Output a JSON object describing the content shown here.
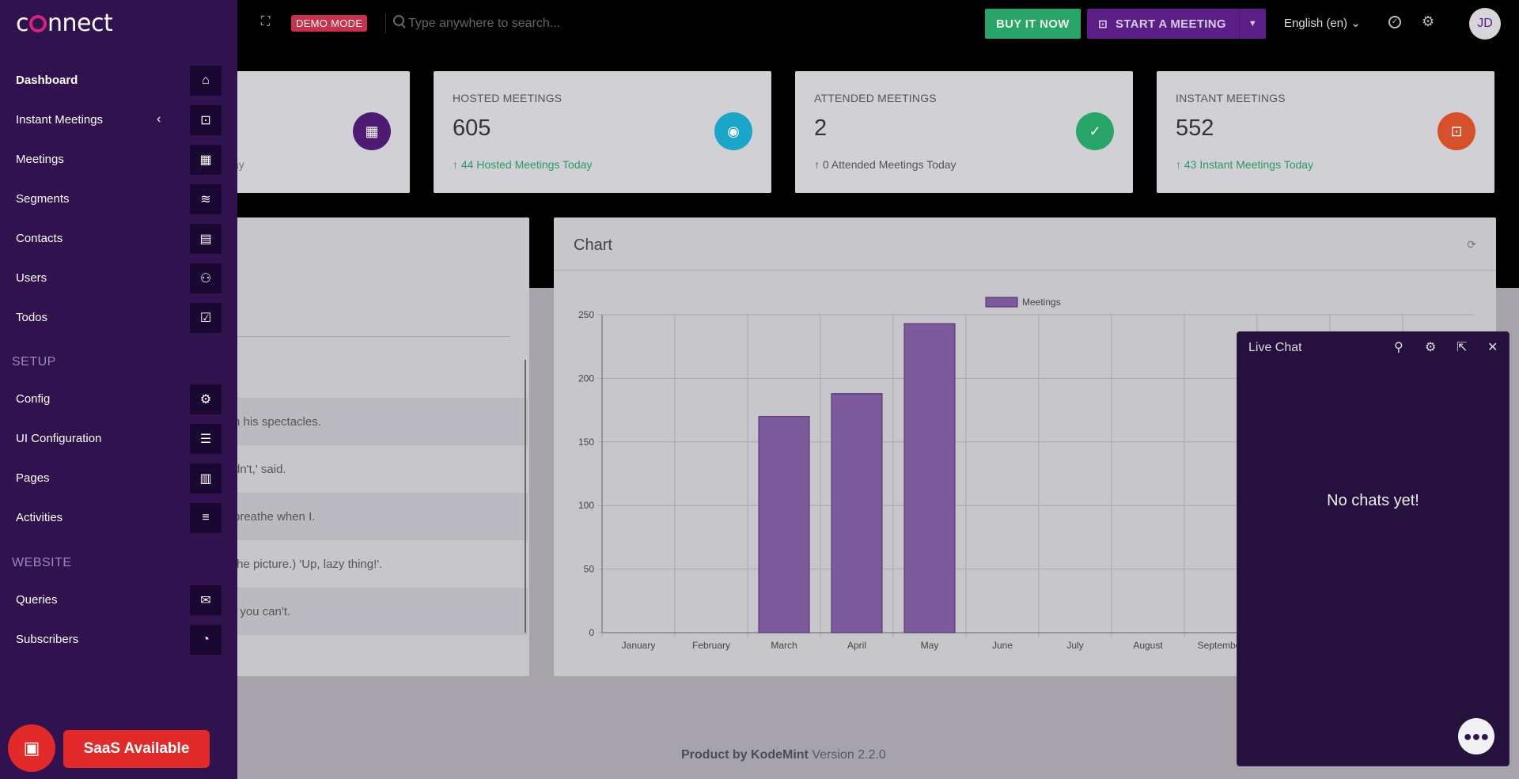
{
  "header": {
    "demo_badge": "DEMO MODE",
    "search_placeholder": "Type anywhere to search...",
    "buy_label": "BUY IT NOW",
    "start_label": "START A MEETING",
    "language": "English (en)",
    "avatar_initials": "JD"
  },
  "cards": [
    {
      "label": "",
      "number": "",
      "sub": "ay",
      "icon": "calendar-icon",
      "color": "#5b1e86"
    },
    {
      "label": "HOSTED MEETINGS",
      "number": "605",
      "sub": "44 Hosted Meetings Today",
      "icon": "user-circle-icon",
      "color": "#1aa6c8"
    },
    {
      "label": "ATTENDED MEETINGS",
      "number": "2",
      "sub": "0 Attended Meetings Today",
      "icon": "calendar-check-icon",
      "color": "#2aa56a"
    },
    {
      "label": "INSTANT MEETINGS",
      "number": "552",
      "sub": "43 Instant Meetings Today",
      "icon": "briefcase-clock-icon",
      "color": "#d6502c"
    }
  ],
  "left_panel": {
    "rows": [
      "n his spectacles.",
      "dn't,' said.",
      "breathe when I.",
      "the picture.) 'Up, lazy thing!'.",
      ", you can't."
    ]
  },
  "chart": {
    "title": "Chart"
  },
  "chart_data": {
    "type": "bar",
    "title": "",
    "categories": [
      "January",
      "February",
      "March",
      "April",
      "May",
      "June",
      "July",
      "August",
      "September"
    ],
    "series": [
      {
        "name": "Meetings",
        "values": [
          0,
          0,
          170,
          188,
          243,
          0,
          0,
          0,
          0
        ]
      }
    ],
    "yticks": [
      "0",
      "50",
      "100",
      "150",
      "200",
      "250"
    ],
    "ylim": [
      0,
      250
    ],
    "grid": true,
    "legend_position": "top",
    "bar_color": "#7d5a9b"
  },
  "sidebar": {
    "logo": "connect",
    "items": [
      {
        "label": "Dashboard",
        "icon": "home-icon",
        "glyph": "⌂",
        "bold": true
      },
      {
        "label": "Instant Meetings",
        "icon": "briefcase-clock-icon",
        "glyph": "⊡",
        "chevron": true
      },
      {
        "label": "Meetings",
        "icon": "calendar-icon",
        "glyph": "▦"
      },
      {
        "label": "Segments",
        "icon": "layers-icon",
        "glyph": "≋"
      },
      {
        "label": "Contacts",
        "icon": "address-book-icon",
        "glyph": "▤"
      },
      {
        "label": "Users",
        "icon": "users-icon",
        "glyph": "⚇"
      },
      {
        "label": "Todos",
        "icon": "checkbox-icon",
        "glyph": "☑"
      }
    ],
    "setup_title": "SETUP",
    "setup_items": [
      {
        "label": "Config",
        "icon": "gears-icon",
        "glyph": "⚙"
      },
      {
        "label": "UI Configuration",
        "icon": "sliders-icon",
        "glyph": "☰"
      },
      {
        "label": "Pages",
        "icon": "newspaper-icon",
        "glyph": "▥"
      },
      {
        "label": "Activities",
        "icon": "list-icon",
        "glyph": "≡"
      }
    ],
    "website_title": "WEBSITE",
    "website_items": [
      {
        "label": "Queries",
        "icon": "envelope-icon",
        "glyph": "✉"
      },
      {
        "label": "Subscribers",
        "icon": "rss-icon",
        "glyph": "◔"
      }
    ],
    "saas_label": "SaaS Available"
  },
  "livechat": {
    "title": "Live Chat",
    "empty": "No chats yet!"
  },
  "footer": {
    "brand": "Product by KodeMint",
    "version": "Version 2.2.0"
  }
}
